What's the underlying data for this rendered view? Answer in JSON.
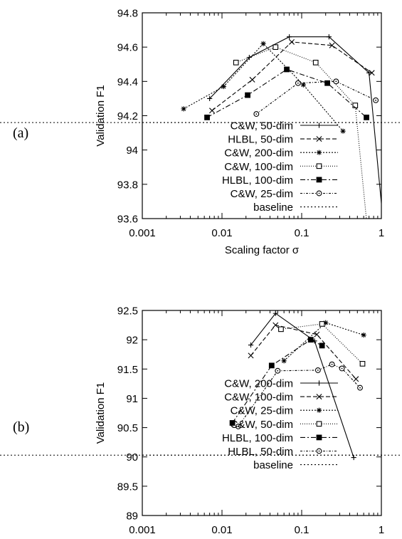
{
  "chart_data": [
    {
      "panel": "(a)",
      "type": "line",
      "xlabel": "Scaling factor σ",
      "ylabel": "Validation F1",
      "xscale": "log",
      "xlim": [
        0.001,
        1
      ],
      "ylim": [
        93.6,
        94.8
      ],
      "xticks": [
        0.001,
        0.01,
        0.1,
        1
      ],
      "xtick_labels": [
        "0.001",
        "0.01",
        "0.1",
        "1"
      ],
      "yticks": [
        93.6,
        93.8,
        94,
        94.2,
        94.4,
        94.6,
        94.8
      ],
      "ytick_labels": [
        "93.6",
        "93.8",
        "94",
        "94.2",
        "94.4",
        "94.6",
        "94.8"
      ],
      "grid": false,
      "legend_position": "bottom-left",
      "series": [
        {
          "name": "C&W, 50-dim",
          "marker": "plus",
          "dash": "",
          "x": [
            0.007,
            0.022,
            0.07,
            0.22,
            0.7,
            1.2
          ],
          "y": [
            94.3,
            94.54,
            94.66,
            94.66,
            94.45,
            93.3
          ]
        },
        {
          "name": "HLBL, 50-dim",
          "marker": "cross",
          "dash": "6,3",
          "x": [
            0.0075,
            0.024,
            0.075,
            0.24,
            0.76
          ],
          "y": [
            94.23,
            94.41,
            94.63,
            94.61,
            94.45
          ]
        },
        {
          "name": "C&W, 200-dim",
          "marker": "star",
          "dash": "2,2",
          "x": [
            0.0033,
            0.0105,
            0.033,
            0.105,
            0.33
          ],
          "y": [
            94.24,
            94.37,
            94.62,
            94.38,
            94.11
          ]
        },
        {
          "name": "C&W, 100-dim",
          "marker": "square-open",
          "dash": "1,2",
          "x": [
            0.015,
            0.047,
            0.15,
            0.47,
            0.75
          ],
          "y": [
            94.51,
            94.6,
            94.51,
            94.26,
            93.3
          ]
        },
        {
          "name": "HLBL, 100-dim",
          "marker": "square-filled",
          "dash": "7,3,2,3",
          "x": [
            0.0065,
            0.021,
            0.065,
            0.21,
            0.65
          ],
          "y": [
            94.19,
            94.32,
            94.47,
            94.39,
            94.19
          ]
        },
        {
          "name": "C&W, 25-dim",
          "marker": "circle-open",
          "dash": "3,2,1,2",
          "x": [
            0.027,
            0.09,
            0.27,
            0.85
          ],
          "y": [
            94.21,
            94.39,
            94.4,
            94.29
          ]
        },
        {
          "name": "baseline",
          "marker": "none",
          "dash": "2,3",
          "type": "hline",
          "y": [
            94.16
          ]
        }
      ]
    },
    {
      "panel": "(b)",
      "type": "line",
      "xlabel": "Scaling factor σ",
      "ylabel": "Validation F1",
      "xscale": "log",
      "xlim": [
        0.001,
        1
      ],
      "ylim": [
        89,
        92.5
      ],
      "xticks": [
        0.001,
        0.01,
        0.1,
        1
      ],
      "xtick_labels": [
        "0.001",
        "0.01",
        "0.1",
        "1"
      ],
      "yticks": [
        89,
        89.5,
        90,
        90.5,
        91,
        91.5,
        92,
        92.5
      ],
      "ytick_labels": [
        "89",
        "89.5",
        "90",
        "90.5",
        "91",
        "91.5",
        "92",
        "92.5"
      ],
      "grid": false,
      "legend_position": "bottom-left",
      "series": [
        {
          "name": "C&W, 200-dim",
          "marker": "plus",
          "dash": "",
          "x": [
            0.023,
            0.047,
            0.145,
            0.45
          ],
          "y": [
            91.91,
            92.45,
            91.98,
            89.99
          ]
        },
        {
          "name": "C&W, 100-dim",
          "marker": "cross",
          "dash": "6,3",
          "x": [
            0.023,
            0.047,
            0.155,
            0.48
          ],
          "y": [
            91.73,
            92.25,
            92.09,
            91.33
          ]
        },
        {
          "name": "C&W, 25-dim",
          "marker": "star",
          "dash": "2,2",
          "x": [
            0.06,
            0.2,
            0.6
          ],
          "y": [
            91.64,
            92.29,
            92.08
          ]
        },
        {
          "name": "C&W, 50-dim",
          "marker": "square-open",
          "dash": "1,2",
          "x": [
            0.055,
            0.18,
            0.58
          ],
          "y": [
            92.18,
            92.27,
            91.59
          ]
        },
        {
          "name": "HLBL, 100-dim",
          "marker": "square-filled",
          "dash": "7,3,2,3",
          "x": [
            0.0135,
            0.042,
            0.13,
            0.18
          ],
          "y": [
            90.58,
            91.56,
            92.0,
            91.9
          ]
        },
        {
          "name": "HLBL, 50-dim",
          "marker": "circle-open",
          "dash": "3,2,1,2",
          "x": [
            0.016,
            0.05,
            0.16,
            0.24,
            0.32,
            0.54
          ],
          "y": [
            90.52,
            91.47,
            91.48,
            91.58,
            91.51,
            91.18
          ]
        },
        {
          "name": "baseline",
          "marker": "none",
          "dash": "2,3",
          "type": "hline",
          "y": [
            90.03
          ]
        }
      ]
    }
  ]
}
